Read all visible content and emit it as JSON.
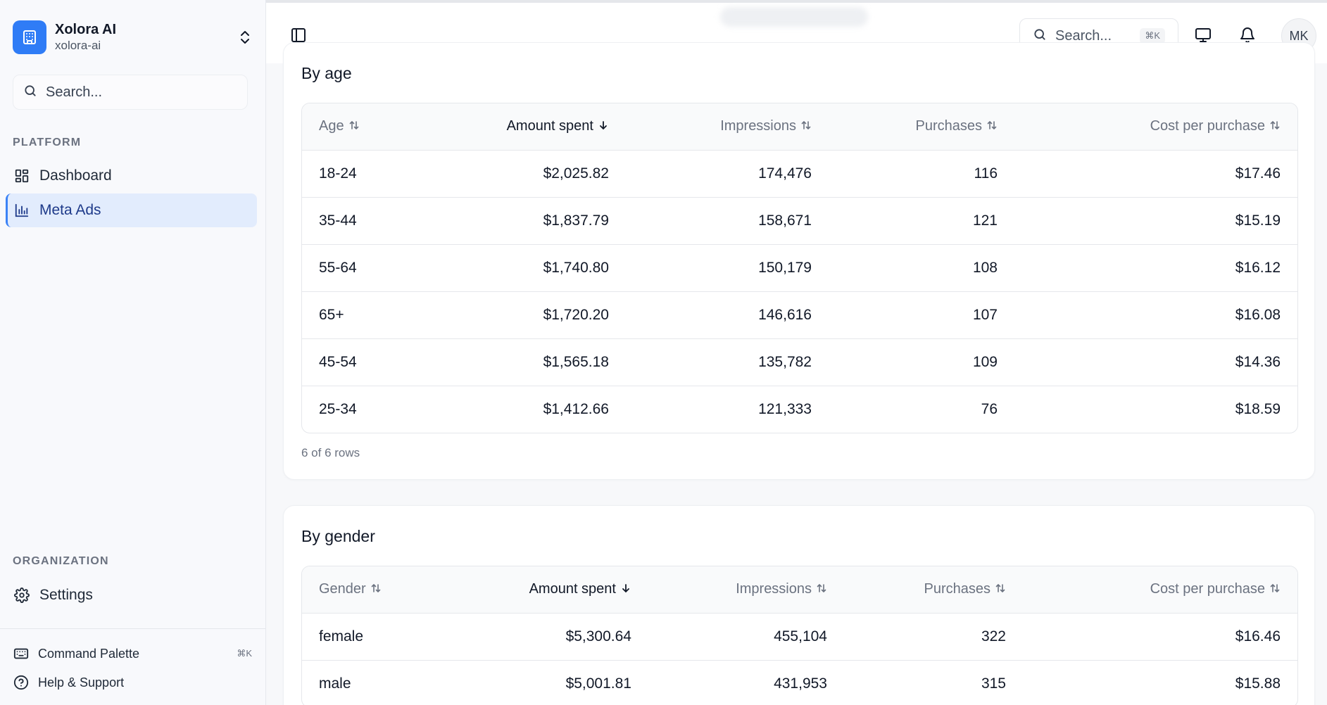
{
  "org": {
    "name": "Xolora AI",
    "slug": "xolora-ai"
  },
  "sidebar": {
    "search_placeholder": "Search...",
    "platform_label": "PLATFORM",
    "nav": [
      {
        "label": "Dashboard",
        "icon": "dashboard-grid-icon"
      },
      {
        "label": "Meta Ads",
        "icon": "bar-chart-icon",
        "active": true
      }
    ],
    "organization_label": "ORGANIZATION",
    "settings_label": "Settings",
    "command_palette_label": "Command Palette",
    "command_palette_shortcut": "⌘K",
    "help_label": "Help & Support"
  },
  "topbar": {
    "search_placeholder": "Search...",
    "search_shortcut": "⌘K",
    "avatar_initials": "MK"
  },
  "age_table": {
    "title": "By age",
    "columns": [
      "Age",
      "Amount spent",
      "Impressions",
      "Purchases",
      "Cost per purchase"
    ],
    "rows": [
      [
        "18-24",
        "$2,025.82",
        "174,476",
        "116",
        "$17.46"
      ],
      [
        "35-44",
        "$1,837.79",
        "158,671",
        "121",
        "$15.19"
      ],
      [
        "55-64",
        "$1,740.80",
        "150,179",
        "108",
        "$16.12"
      ],
      [
        "65+",
        "$1,720.20",
        "146,616",
        "107",
        "$16.08"
      ],
      [
        "45-54",
        "$1,565.18",
        "135,782",
        "109",
        "$14.36"
      ],
      [
        "25-34",
        "$1,412.66",
        "121,333",
        "76",
        "$18.59"
      ]
    ],
    "row_count": "6 of 6 rows"
  },
  "gender_table": {
    "title": "By gender",
    "columns": [
      "Gender",
      "Amount spent",
      "Impressions",
      "Purchases",
      "Cost per purchase"
    ],
    "rows": [
      [
        "female",
        "$5,300.64",
        "455,104",
        "322",
        "$16.46"
      ],
      [
        "male",
        "$5,001.81",
        "431,953",
        "315",
        "$15.88"
      ]
    ]
  },
  "colors": {
    "accent": "#2f7cf6",
    "active_bg": "#e2ecfd"
  }
}
